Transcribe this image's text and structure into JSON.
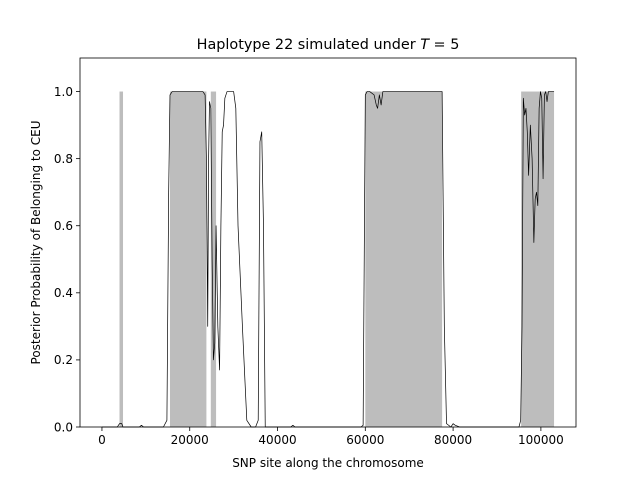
{
  "chart_data": {
    "type": "line",
    "title_prefix": "Haplotype 22 simulated under ",
    "title_var": "T",
    "title_suffix": " =  5",
    "xlabel": "SNP site along the chromosome",
    "ylabel": "Posterior Probability of Belonging to CEU",
    "xlim": [
      -5000,
      108000
    ],
    "ylim": [
      0,
      1.1
    ],
    "xticks": [
      0,
      20000,
      40000,
      60000,
      80000,
      100000
    ],
    "xtick_labels": [
      "0",
      "20000",
      "40000",
      "60000",
      "80000",
      "100000"
    ],
    "yticks": [
      0.0,
      0.2,
      0.4,
      0.6,
      0.8,
      1.0
    ],
    "ytick_labels": [
      "0.0",
      "0.2",
      "0.4",
      "0.6",
      "0.8",
      "1.0"
    ],
    "grid": false,
    "colors": {
      "shade": "#bdbdbd",
      "line": "#000000"
    },
    "shaded_regions": [
      {
        "x_start": 4000,
        "x_end": 4800,
        "y": 1.0
      },
      {
        "x_start": 15500,
        "x_end": 23800,
        "y": 1.0
      },
      {
        "x_start": 24800,
        "x_end": 26000,
        "y": 1.0
      },
      {
        "x_start": 60000,
        "x_end": 77500,
        "y": 1.0
      },
      {
        "x_start": 95500,
        "x_end": 103000,
        "y": 1.0
      }
    ],
    "series": [
      {
        "x": [
          0,
          3500,
          4000,
          4500,
          4800,
          5500,
          8500,
          9000,
          9500,
          12000,
          14000,
          14800,
          15200,
          15500,
          16000,
          18000,
          22000,
          23000,
          23500,
          23800,
          24100,
          24300,
          24500,
          24800,
          25100,
          25400,
          25700,
          26000,
          26400,
          26800,
          27100,
          27400,
          27700,
          28000,
          28500,
          29000,
          30000,
          30500,
          31000,
          32000,
          33000,
          34000,
          35000,
          35600,
          36000,
          36400,
          36800,
          37200,
          40000,
          43000,
          43500,
          44000,
          50000,
          55000,
          59000,
          59500,
          60000,
          60400,
          61000,
          62000,
          62500,
          62800,
          63200,
          63600,
          64000,
          65000,
          70000,
          75000,
          77500,
          78000,
          78500,
          79500,
          80000,
          80500,
          81500,
          85000,
          90000,
          95000,
          95400,
          95700,
          96000,
          96300,
          96600,
          96900,
          97200,
          97600,
          98000,
          98400,
          98700,
          99000,
          99300,
          99600,
          99900,
          100200,
          100500,
          100800,
          101100,
          101400,
          101700,
          102000,
          102500,
          103000
        ],
        "y": [
          0.0,
          0.0,
          0.01,
          0.01,
          0.0,
          0.0,
          0.0,
          0.005,
          0.0,
          0.0,
          0.0,
          0.02,
          0.7,
          0.99,
          1.0,
          1.0,
          1.0,
          1.0,
          0.99,
          0.8,
          0.3,
          0.8,
          0.97,
          0.95,
          0.5,
          0.2,
          0.25,
          0.6,
          0.3,
          0.17,
          0.6,
          0.88,
          0.9,
          0.98,
          1.0,
          1.0,
          1.0,
          0.95,
          0.6,
          0.3,
          0.02,
          0.0,
          0.0,
          0.02,
          0.85,
          0.88,
          0.6,
          0.0,
          0.0,
          0.0,
          0.005,
          0.0,
          0.0,
          0.0,
          0.0,
          0.005,
          0.99,
          1.0,
          1.0,
          0.99,
          0.96,
          0.95,
          0.99,
          0.96,
          1.0,
          1.0,
          1.0,
          1.0,
          1.0,
          0.3,
          0.01,
          0.0,
          0.01,
          0.005,
          0.0,
          0.0,
          0.0,
          0.0,
          0.02,
          0.3,
          0.98,
          0.93,
          0.95,
          0.88,
          0.75,
          0.9,
          0.8,
          0.55,
          0.68,
          0.7,
          0.66,
          0.95,
          1.0,
          0.98,
          0.74,
          0.99,
          1.0,
          0.97,
          1.0,
          1.0,
          1.0,
          1.0
        ]
      }
    ]
  }
}
